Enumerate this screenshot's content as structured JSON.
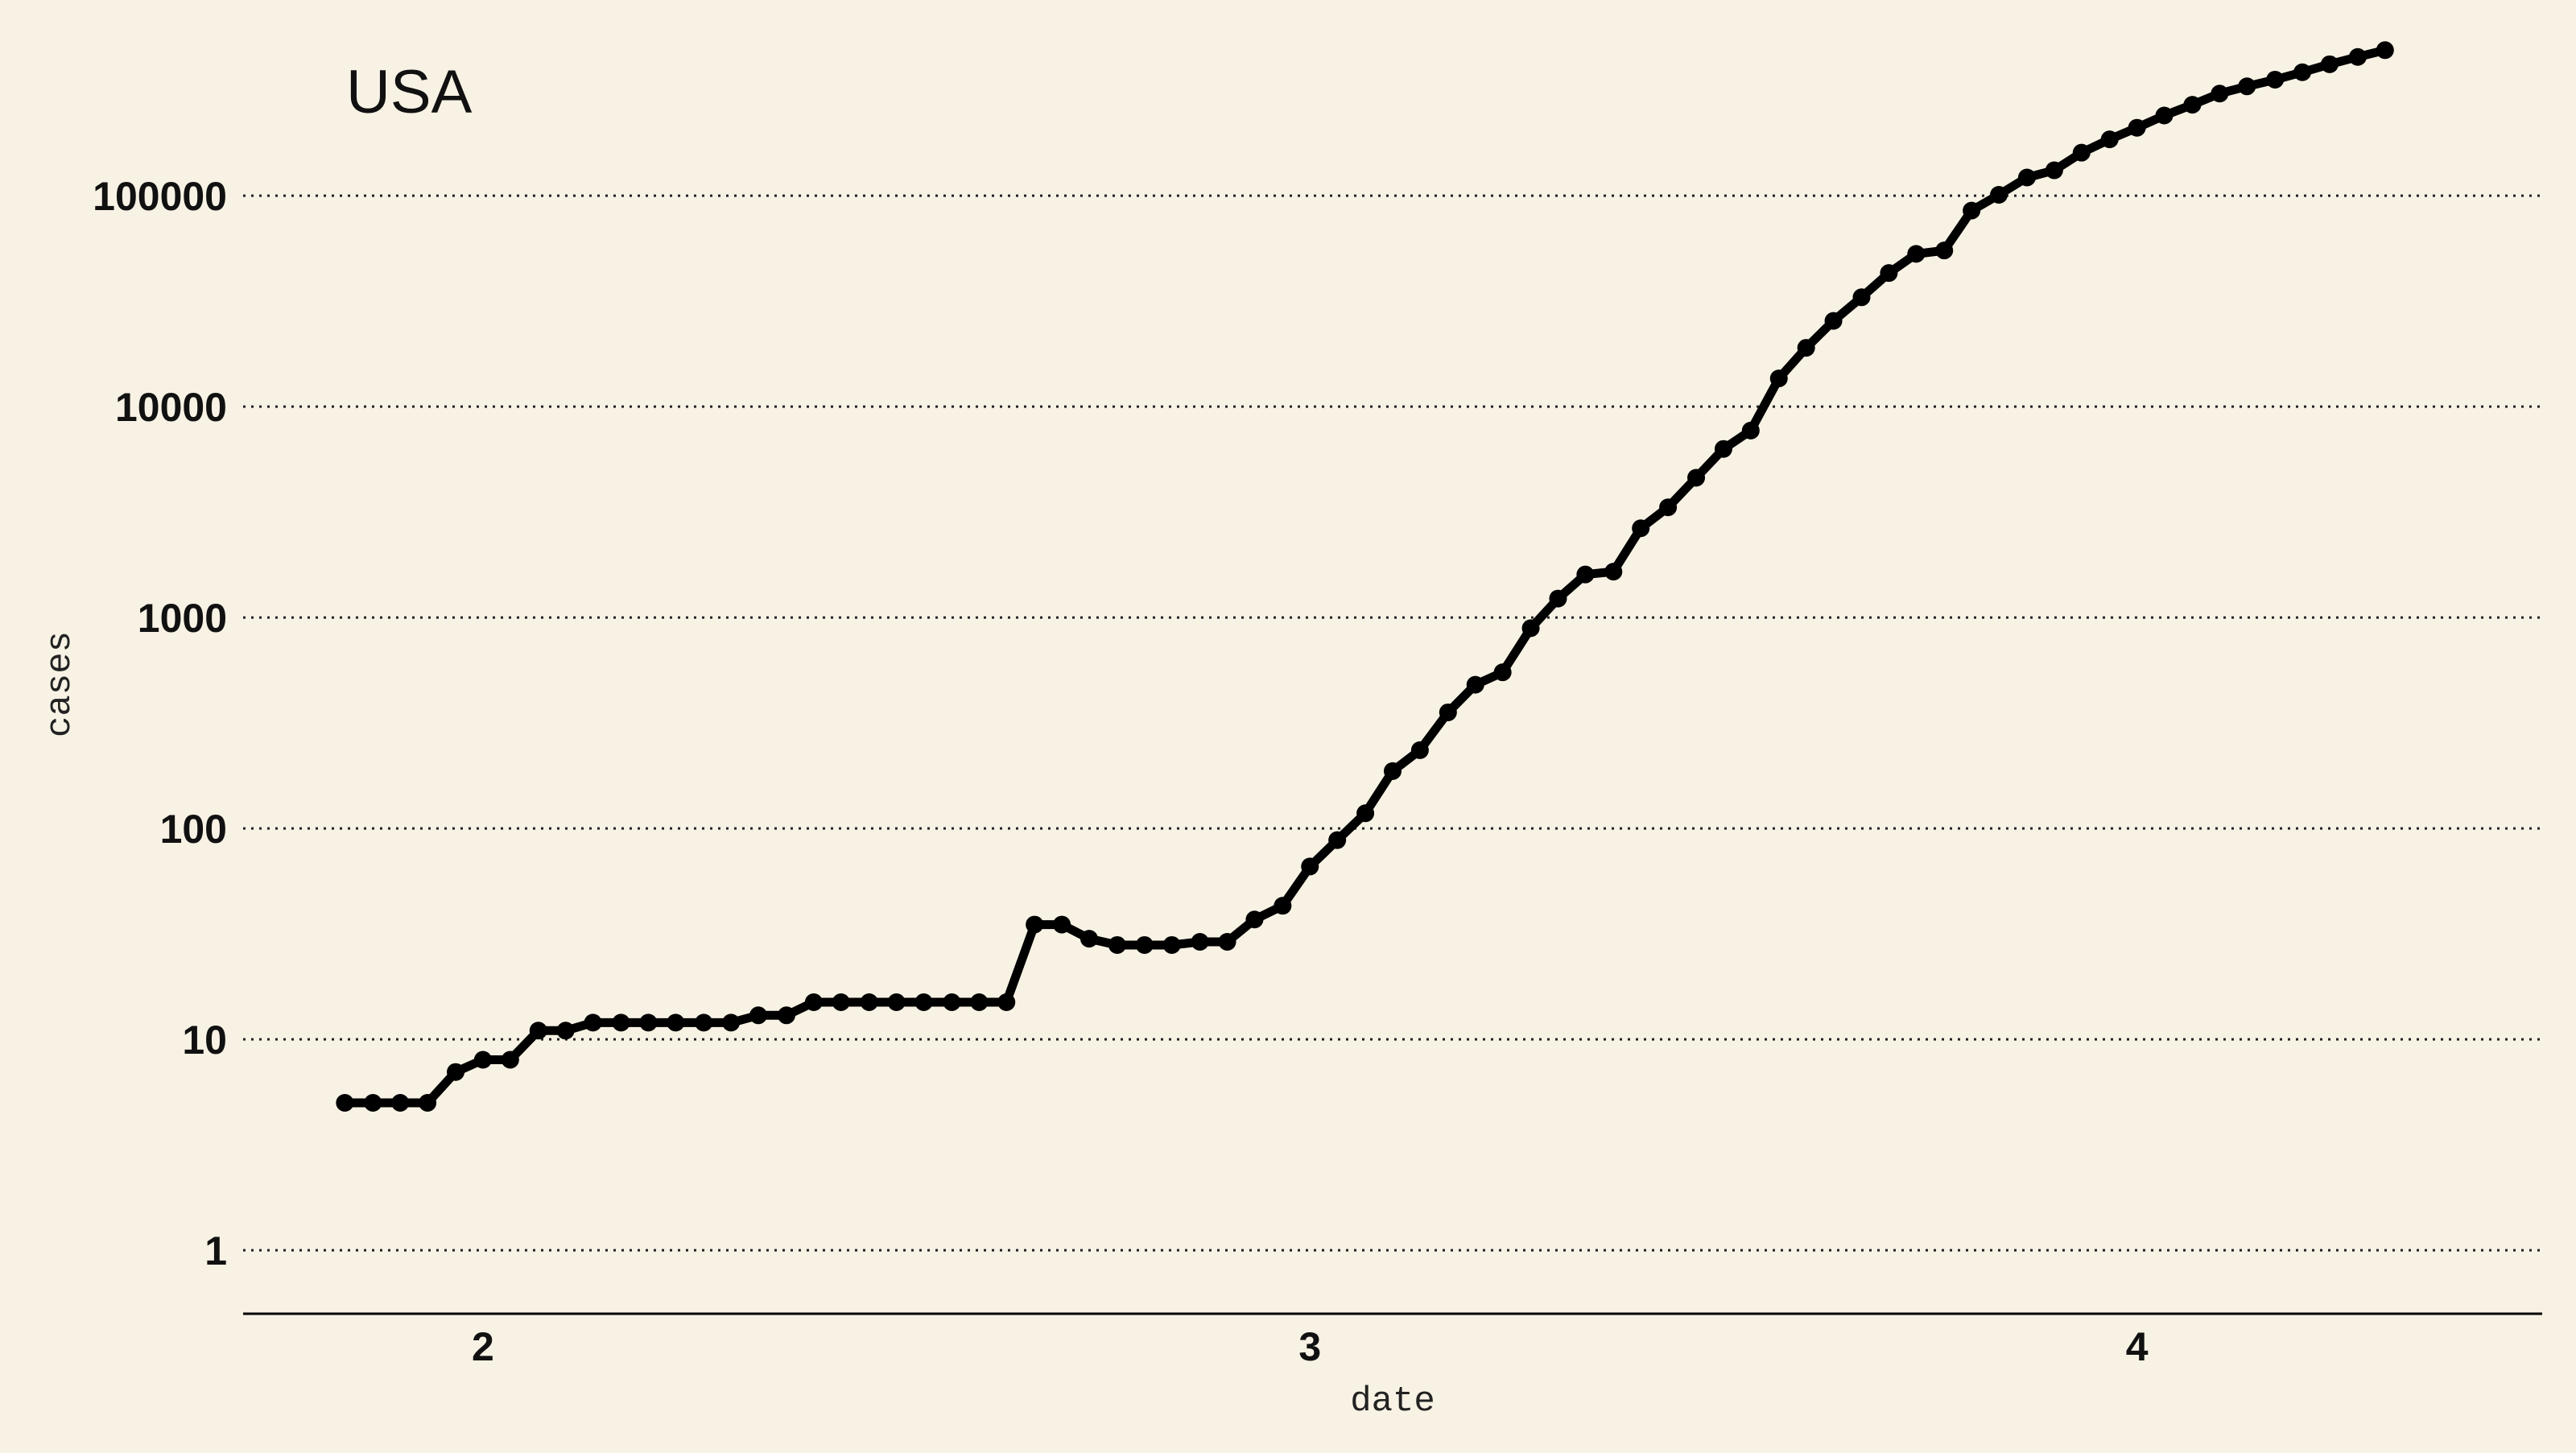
{
  "chart_data": {
    "type": "line",
    "title": "USA",
    "xlabel": "date",
    "ylabel": "cases",
    "y_scale": "log",
    "ylim": [
      0.5,
      500000
    ],
    "yticks": [
      1,
      10,
      100,
      1000,
      10000,
      100000
    ],
    "ytick_labels": [
      "1",
      "10",
      "100",
      "1000",
      "10000",
      "100000"
    ],
    "xlim": [
      1.71,
      4.49
    ],
    "xticks": [
      2,
      3,
      4
    ],
    "xtick_labels": [
      "2",
      "3",
      "4"
    ],
    "grid": "horizontal dotted",
    "legend": "none",
    "series": [
      {
        "color": "#000000",
        "marker": "circle",
        "x": [
          1.833,
          1.867,
          1.9,
          1.933,
          1.967,
          2.0,
          2.033,
          2.067,
          2.1,
          2.133,
          2.167,
          2.2,
          2.233,
          2.267,
          2.3,
          2.333,
          2.367,
          2.4,
          2.433,
          2.467,
          2.5,
          2.533,
          2.567,
          2.6,
          2.633,
          2.667,
          2.7,
          2.733,
          2.767,
          2.8,
          2.833,
          2.867,
          2.9,
          2.933,
          2.967,
          3.0,
          3.033,
          3.067,
          3.1,
          3.133,
          3.167,
          3.2,
          3.233,
          3.267,
          3.3,
          3.333,
          3.367,
          3.4,
          3.433,
          3.467,
          3.5,
          3.533,
          3.567,
          3.6,
          3.633,
          3.667,
          3.7,
          3.733,
          3.767,
          3.8,
          3.833,
          3.867,
          3.9,
          3.933,
          3.967,
          4.0,
          4.033,
          4.067,
          4.1,
          4.133,
          4.167,
          4.2,
          4.233,
          4.267,
          4.3
        ],
        "y": [
          5,
          5,
          5,
          5,
          7,
          8,
          8,
          11,
          11,
          12,
          12,
          12,
          12,
          12,
          12,
          13,
          13,
          15,
          15,
          15,
          15,
          15,
          15,
          15,
          15,
          35,
          35,
          30,
          28,
          28,
          28,
          29,
          29,
          37,
          43,
          66,
          88,
          118,
          187,
          235,
          355,
          480,
          550,
          890,
          1230,
          1600,
          1650,
          2650,
          3330,
          4600,
          6300,
          7700,
          13600,
          19000,
          25500,
          33000,
          43000,
          53000,
          55000,
          85000,
          101000,
          122000,
          132000,
          160000,
          185000,
          210000,
          240000,
          270000,
          305000,
          330000,
          355000,
          385000,
          420000,
          455000,
          490000
        ]
      }
    ]
  }
}
